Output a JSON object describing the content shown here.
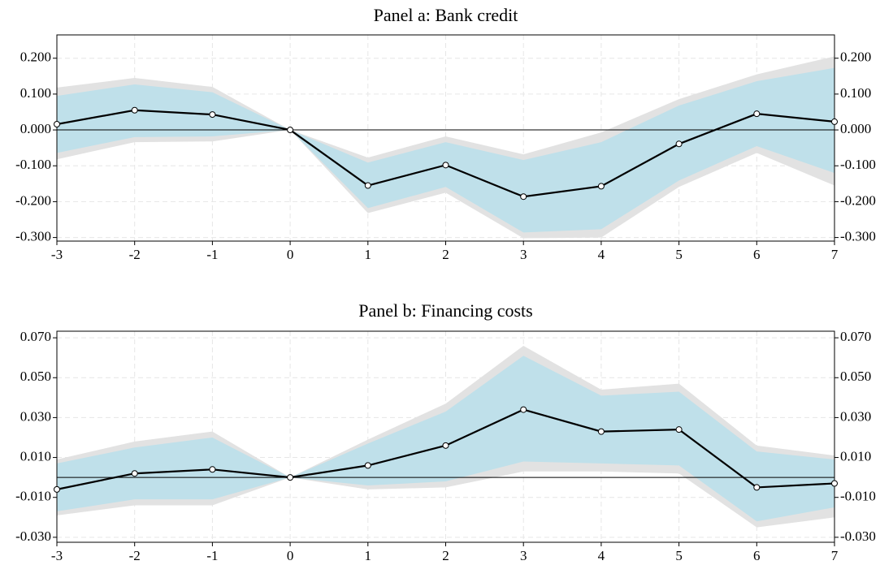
{
  "chart_data": [
    {
      "type": "line",
      "title": "Panel a: Bank credit",
      "x": [
        -3,
        -2,
        -1,
        0,
        1,
        2,
        3,
        4,
        5,
        6,
        7
      ],
      "xlim": [
        -3,
        7
      ],
      "xticks": [
        -3,
        -2,
        -1,
        0,
        1,
        2,
        3,
        4,
        5,
        6,
        7
      ],
      "ylim": [
        -0.31,
        0.265
      ],
      "yticks": [
        {
          "value": -0.3,
          "label": "-0.300"
        },
        {
          "value": -0.2,
          "label": "-0.200"
        },
        {
          "value": -0.1,
          "label": "-0.100"
        },
        {
          "value": 0,
          "label": "0.000"
        },
        {
          "value": 0.1,
          "label": "0.100"
        },
        {
          "value": 0.2,
          "label": "0.200"
        }
      ],
      "grid": true,
      "reference_line": 0,
      "bands": [
        {
          "color": "#e2e2e2",
          "upper": [
            0.118,
            0.145,
            0.12,
            0,
            -0.077,
            -0.018,
            -0.068,
            -0.007,
            0.086,
            0.155,
            0.205
          ],
          "lower": [
            -0.082,
            -0.034,
            -0.032,
            0,
            -0.232,
            -0.175,
            -0.302,
            -0.3,
            -0.159,
            -0.064,
            -0.155
          ]
        },
        {
          "color": "#bfe0ea",
          "upper": [
            0.095,
            0.127,
            0.105,
            0,
            -0.091,
            -0.034,
            -0.084,
            -0.034,
            0.068,
            0.136,
            0.173
          ],
          "lower": [
            -0.064,
            -0.02,
            -0.018,
            0,
            -0.218,
            -0.159,
            -0.286,
            -0.277,
            -0.141,
            -0.045,
            -0.12
          ]
        }
      ],
      "series": [
        {
          "color": "#000000",
          "values": [
            0.016,
            0.055,
            0.043,
            0,
            -0.155,
            -0.098,
            -0.186,
            -0.157,
            -0.039,
            0.045,
            0.023
          ]
        }
      ]
    },
    {
      "type": "line",
      "title": "Panel b: Financing costs",
      "x": [
        -3,
        -2,
        -1,
        0,
        1,
        2,
        3,
        4,
        5,
        6,
        7
      ],
      "xlim": [
        -3,
        7
      ],
      "xticks": [
        -3,
        -2,
        -1,
        0,
        1,
        2,
        3,
        4,
        5,
        6,
        7
      ],
      "ylim": [
        -0.0325,
        0.0733
      ],
      "yticks": [
        {
          "value": -0.03,
          "label": "-0.030"
        },
        {
          "value": -0.01,
          "label": "-0.010"
        },
        {
          "value": 0.01,
          "label": "0.010"
        },
        {
          "value": 0.03,
          "label": "0.030"
        },
        {
          "value": 0.05,
          "label": "0.050"
        },
        {
          "value": 0.07,
          "label": "0.070"
        }
      ],
      "grid": true,
      "reference_line": 0,
      "bands": [
        {
          "color": "#e2e2e2",
          "upper": [
            0.009,
            0.018,
            0.023,
            0,
            0.019,
            0.037,
            0.066,
            0.044,
            0.047,
            0.016,
            0.011
          ],
          "lower": [
            -0.019,
            -0.014,
            -0.014,
            0,
            -0.006,
            -0.005,
            0.003,
            0.003,
            0.002,
            -0.025,
            -0.02
          ]
        },
        {
          "color": "#bfe0ea",
          "upper": [
            0.007,
            0.015,
            0.02,
            0,
            0.017,
            0.033,
            0.061,
            0.041,
            0.043,
            0.013,
            0.009
          ],
          "lower": [
            -0.017,
            -0.011,
            -0.011,
            0,
            -0.004,
            -0.002,
            0.008,
            0.007,
            0.006,
            -0.022,
            -0.015
          ]
        }
      ],
      "series": [
        {
          "color": "#000000",
          "values": [
            -0.006,
            0.002,
            0.004,
            0,
            0.006,
            0.016,
            0.034,
            0.023,
            0.024,
            -0.005,
            -0.003
          ]
        }
      ]
    }
  ]
}
